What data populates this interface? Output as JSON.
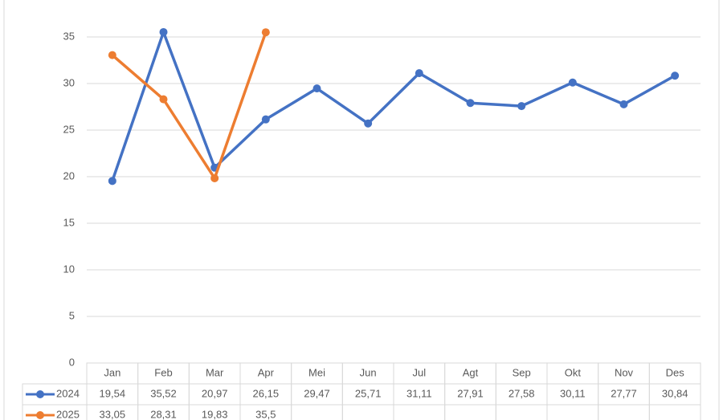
{
  "chart_data": {
    "type": "line",
    "categories": [
      "Jan",
      "Feb",
      "Mar",
      "Apr",
      "Mei",
      "Jun",
      "Jul",
      "Agt",
      "Sep",
      "Okt",
      "Nov",
      "Des"
    ],
    "series": [
      {
        "name": "2024",
        "color": "#4472c4",
        "values": [
          19.54,
          35.52,
          20.97,
          26.15,
          29.47,
          25.71,
          31.11,
          27.91,
          27.58,
          30.11,
          27.77,
          30.84
        ],
        "value_labels": [
          "19,54",
          "35,52",
          "20,97",
          "26,15",
          "29,47",
          "25,71",
          "31,11",
          "27,91",
          "27,58",
          "30,11",
          "27,77",
          "30,84"
        ]
      },
      {
        "name": "2025",
        "color": "#ed7d31",
        "values": [
          33.05,
          28.31,
          19.83,
          35.5,
          null,
          null,
          null,
          null,
          null,
          null,
          null,
          null
        ],
        "value_labels": [
          "33,05",
          "28,31",
          "19,83",
          "35,5",
          null,
          null,
          null,
          null,
          null,
          null,
          null,
          null
        ]
      }
    ],
    "ylim": [
      0,
      35
    ],
    "yticks": [
      0,
      5,
      10,
      15,
      20,
      25,
      30,
      35
    ],
    "grid": true,
    "data_table": true
  }
}
